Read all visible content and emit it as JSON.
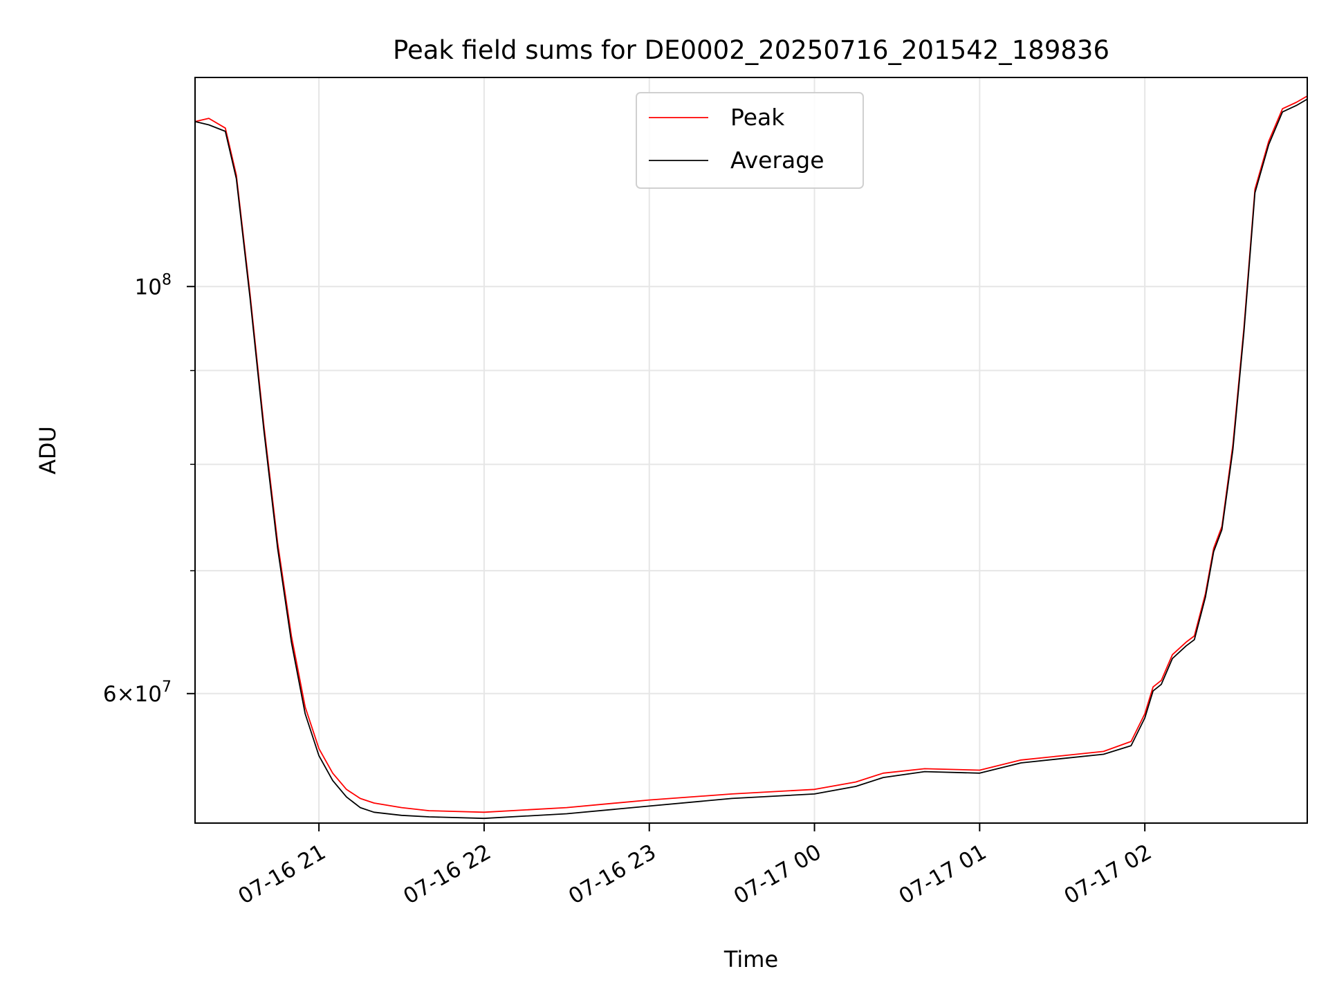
{
  "chart_data": {
    "type": "line",
    "title": "Peak field sums for DE0002_20250716_201542_189836",
    "xlabel": "Time",
    "ylabel": "ADU",
    "yscale": "log",
    "ylim": [
      51000000,
      130000000
    ],
    "xlim": [
      "2025-07-16 20:15",
      "2025-07-17 02:59"
    ],
    "grid": true,
    "legend_position": "top-center",
    "x_ticks": [
      {
        "value": "2025-07-16 21:00",
        "label": "07-16 21"
      },
      {
        "value": "2025-07-16 22:00",
        "label": "07-16 22"
      },
      {
        "value": "2025-07-16 23:00",
        "label": "07-16 23"
      },
      {
        "value": "2025-07-17 00:00",
        "label": "07-17 00"
      },
      {
        "value": "2025-07-17 01:00",
        "label": "07-17 01"
      },
      {
        "value": "2025-07-17 02:00",
        "label": "07-17 02"
      }
    ],
    "y_ticks": [
      {
        "value": 100000000,
        "label": "10",
        "exponent": "8"
      },
      {
        "value": 60000000,
        "label": "6×10",
        "exponent": "7"
      }
    ],
    "y_minor_ticks": [
      70000000,
      80000000,
      90000000
    ],
    "x": [
      "2025-07-16 20:15",
      "2025-07-16 20:20",
      "2025-07-16 20:26",
      "2025-07-16 20:30",
      "2025-07-16 20:35",
      "2025-07-16 20:40",
      "2025-07-16 20:45",
      "2025-07-16 20:50",
      "2025-07-16 20:55",
      "2025-07-16 21:00",
      "2025-07-16 21:05",
      "2025-07-16 21:10",
      "2025-07-16 21:15",
      "2025-07-16 21:20",
      "2025-07-16 21:30",
      "2025-07-16 21:40",
      "2025-07-16 22:00",
      "2025-07-16 22:30",
      "2025-07-16 23:00",
      "2025-07-16 23:30",
      "2025-07-17 00:00",
      "2025-07-17 00:15",
      "2025-07-17 00:25",
      "2025-07-17 00:40",
      "2025-07-17 01:00",
      "2025-07-17 01:15",
      "2025-07-17 01:30",
      "2025-07-17 01:45",
      "2025-07-17 01:55",
      "2025-07-17 02:00",
      "2025-07-17 02:03",
      "2025-07-17 02:06",
      "2025-07-17 02:10",
      "2025-07-17 02:15",
      "2025-07-17 02:18",
      "2025-07-17 02:22",
      "2025-07-17 02:25",
      "2025-07-17 02:28",
      "2025-07-17 02:32",
      "2025-07-17 02:36",
      "2025-07-17 02:40",
      "2025-07-17 02:45",
      "2025-07-17 02:50",
      "2025-07-17 02:55",
      "2025-07-17 02:59"
    ],
    "series": [
      {
        "name": "Peak",
        "color": "#ff0000",
        "values": [
          123000000,
          123500000,
          122000000,
          115000000,
          99000000,
          84000000,
          72500000,
          64500000,
          59000000,
          56000000,
          54300000,
          53200000,
          52600000,
          52300000,
          52000000,
          51800000,
          51700000,
          52000000,
          52500000,
          52900000,
          53200000,
          53700000,
          54300000,
          54600000,
          54500000,
          55200000,
          55500000,
          55800000,
          56500000,
          58500000,
          60500000,
          61000000,
          63000000,
          64000000,
          64500000,
          68000000,
          72000000,
          74000000,
          82000000,
          95000000,
          113000000,
          120000000,
          125000000,
          126000000,
          127000000
        ]
      },
      {
        "name": "Average",
        "color": "#000000",
        "values": [
          123000000,
          122500000,
          121500000,
          114500000,
          98500000,
          83500000,
          72000000,
          64000000,
          58500000,
          55500000,
          53800000,
          52700000,
          52000000,
          51700000,
          51500000,
          51400000,
          51300000,
          51600000,
          52100000,
          52600000,
          52900000,
          53400000,
          54000000,
          54400000,
          54300000,
          55000000,
          55300000,
          55600000,
          56200000,
          58200000,
          60200000,
          60700000,
          62700000,
          63700000,
          64200000,
          67700000,
          71700000,
          73700000,
          81500000,
          94500000,
          112500000,
          119500000,
          124500000,
          125500000,
          126500000
        ]
      }
    ]
  }
}
